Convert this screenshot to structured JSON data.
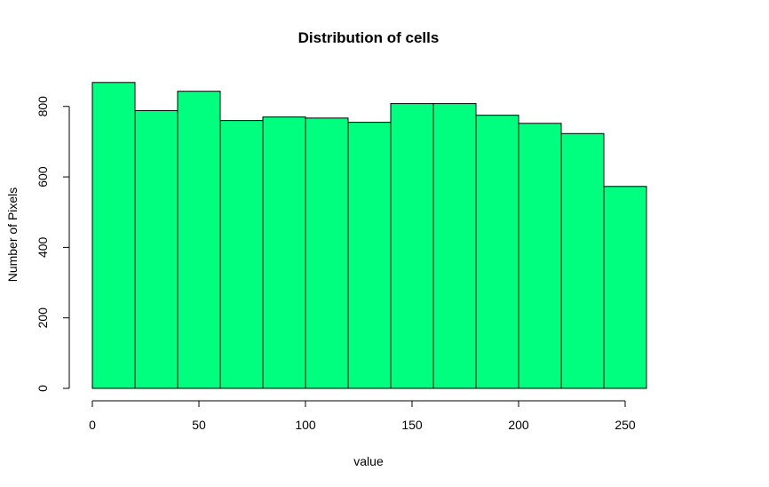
{
  "chart_data": {
    "type": "histogram",
    "title": "Distribution of cells",
    "xlabel": "value",
    "ylabel": "Number of Pixels",
    "bar_color": "#00FF7F",
    "xlim": [
      0,
      260
    ],
    "ylim": [
      0,
      870
    ],
    "x_ticks": [
      0,
      50,
      100,
      150,
      200,
      250
    ],
    "y_ticks": [
      0,
      200,
      400,
      600,
      800
    ],
    "bins": [
      {
        "start": 0,
        "end": 20,
        "count": 868
      },
      {
        "start": 20,
        "end": 40,
        "count": 788
      },
      {
        "start": 40,
        "end": 60,
        "count": 843
      },
      {
        "start": 60,
        "end": 80,
        "count": 760
      },
      {
        "start": 80,
        "end": 100,
        "count": 770
      },
      {
        "start": 100,
        "end": 120,
        "count": 767
      },
      {
        "start": 120,
        "end": 140,
        "count": 755
      },
      {
        "start": 140,
        "end": 160,
        "count": 808
      },
      {
        "start": 160,
        "end": 180,
        "count": 808
      },
      {
        "start": 180,
        "end": 200,
        "count": 775
      },
      {
        "start": 200,
        "end": 220,
        "count": 752
      },
      {
        "start": 220,
        "end": 240,
        "count": 723
      },
      {
        "start": 240,
        "end": 260,
        "count": 573
      }
    ],
    "grid": false,
    "legend": "none"
  }
}
